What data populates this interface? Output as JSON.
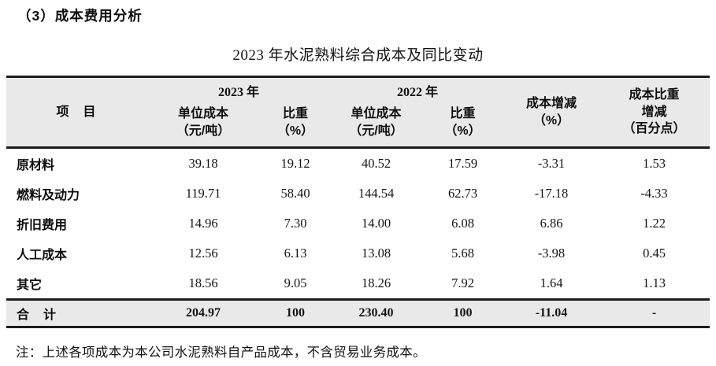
{
  "page": {
    "section_heading": "（3）成本费用分析",
    "table_title": "2023 年水泥熟料综合成本及同比变动",
    "note": "注：上述各项成本为本公司水泥熟料自产品成本，不含贸易业务成本。"
  },
  "colors": {
    "header_row_bg": "#e9e9e9",
    "total_row_bg": "#e9e9e9",
    "rule_color": "#1c1c1c",
    "text_color": "#141414"
  },
  "table": {
    "header": {
      "item": "项　目",
      "year_2023": "2023 年",
      "year_2022": "2022 年",
      "unit_cost_line1": "单位成本",
      "unit_cost_line2": "（元/吨）",
      "ratio_line1": "比重",
      "ratio_line2": "（%）",
      "cost_change_line1": "成本增减",
      "cost_change_line2": "（%）",
      "ratio_change_line1": "成本比重",
      "ratio_change_line2": "增减",
      "ratio_change_line3": "（百分点）"
    },
    "rows": [
      {
        "item": "原材料",
        "uc2023": "39.18",
        "r2023": "19.12",
        "uc2022": "40.52",
        "r2022": "17.59",
        "chg": "-3.31",
        "rchg": "1.53"
      },
      {
        "item": "燃料及动力",
        "uc2023": "119.71",
        "r2023": "58.40",
        "uc2022": "144.54",
        "r2022": "62.73",
        "chg": "-17.18",
        "rchg": "-4.33"
      },
      {
        "item": "折旧费用",
        "uc2023": "14.96",
        "r2023": "7.30",
        "uc2022": "14.00",
        "r2022": "6.08",
        "chg": "6.86",
        "rchg": "1.22"
      },
      {
        "item": "人工成本",
        "uc2023": "12.56",
        "r2023": "6.13",
        "uc2022": "13.08",
        "r2022": "5.68",
        "chg": "-3.98",
        "rchg": "0.45"
      },
      {
        "item": "其它",
        "uc2023": "18.56",
        "r2023": "9.05",
        "uc2022": "18.26",
        "r2022": "7.92",
        "chg": "1.64",
        "rchg": "1.13"
      }
    ],
    "total": {
      "item": "合　计",
      "uc2023": "204.97",
      "r2023": "100",
      "uc2022": "230.40",
      "r2022": "100",
      "chg": "-11.04",
      "rchg": "-"
    }
  }
}
